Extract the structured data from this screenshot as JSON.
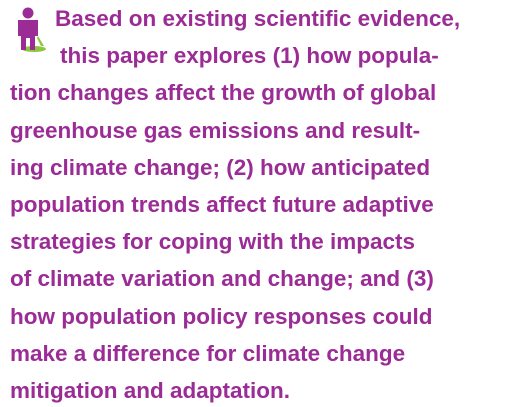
{
  "paragraph": {
    "lines": [
      "Based on existing scientific evidence,",
      "this paper explores (1) how popula-",
      "tion changes affect the growth of global",
      "greenhouse gas emissions and result-",
      "ing climate change; (2) how anticipated",
      "population trends affect future adaptive",
      "strategies for coping with the impacts",
      "of climate variation and change; and (3)",
      "how population policy responses could",
      "make a difference for climate change",
      "mitigation and adaptation."
    ]
  }
}
